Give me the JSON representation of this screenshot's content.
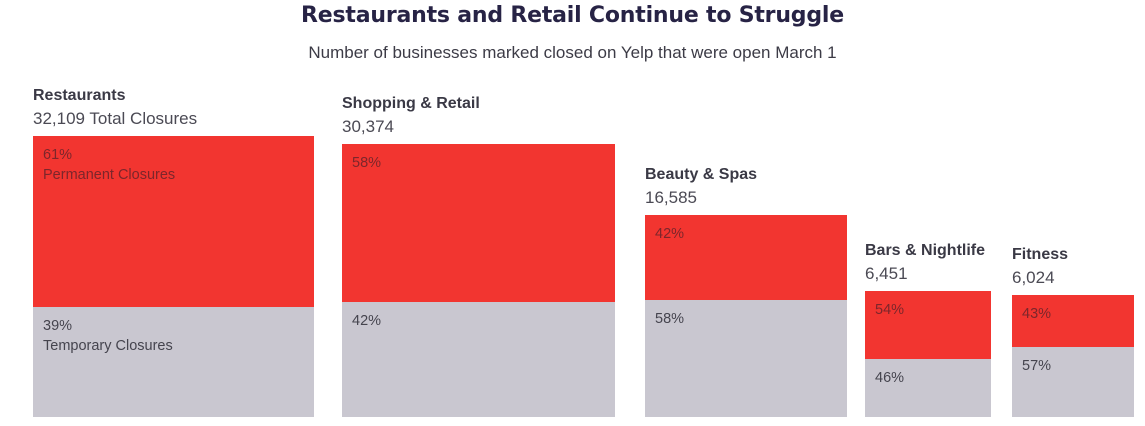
{
  "header": {
    "title": "Restaurants and Retail Continue to Struggle",
    "subtitle": "Number of businesses marked closed on Yelp that were open March 1"
  },
  "colors": {
    "permanent_red": "#f23530",
    "temporary_gray": "#c9c7d0",
    "text_on_red": "#7c262b",
    "text_on_gray": "#45444e",
    "title_text": "#272345",
    "label_text": "#3a3945",
    "value_text": "#4b4a54"
  },
  "chart_data": {
    "type": "bar",
    "subtype": "bottom-aligned proportional-area squares, stacked percent segments",
    "title": "Restaurants and Retail Continue to Struggle",
    "subtitle": "Number of businesses marked closed on Yelp that were open March 1",
    "categories": [
      "Restaurants",
      "Shopping & Retail",
      "Beauty & Spas",
      "Bars & Nightlife",
      "Fitness"
    ],
    "totals": [
      32109,
      30374,
      16585,
      6451,
      6024
    ],
    "total_labels": [
      "32,109 Total Closures",
      "30,374",
      "16,585",
      "6,451",
      "6,024"
    ],
    "series": [
      {
        "name": "Permanent Closures",
        "color": "#f23530",
        "values_pct": [
          61,
          58,
          42,
          54,
          43
        ]
      },
      {
        "name": "Temporary Closures",
        "color": "#c9c7d0",
        "values_pct": [
          39,
          42,
          58,
          46,
          57
        ]
      }
    ],
    "legend_position": "inline-first-bar",
    "grid": false,
    "axes": "none"
  },
  "bars": [
    {
      "name": "Restaurants",
      "total_label": "32,109 Total Closures",
      "red_pct_label": "61%",
      "red_sublabel": "Permanent Closures",
      "gray_pct_label": "39%",
      "gray_sublabel": "Temporary Closures"
    },
    {
      "name": "Shopping & Retail",
      "total_label": "30,374",
      "red_pct_label": "58%",
      "red_sublabel": "",
      "gray_pct_label": "42%",
      "gray_sublabel": ""
    },
    {
      "name": "Beauty & Spas",
      "total_label": "16,585",
      "red_pct_label": "42%",
      "red_sublabel": "",
      "gray_pct_label": "58%",
      "gray_sublabel": ""
    },
    {
      "name": "Bars & Nightlife",
      "total_label": "6,451",
      "red_pct_label": "54%",
      "red_sublabel": "",
      "gray_pct_label": "46%",
      "gray_sublabel": ""
    },
    {
      "name": "Fitness",
      "total_label": "6,024",
      "red_pct_label": "43%",
      "red_sublabel": "",
      "gray_pct_label": "57%",
      "gray_sublabel": ""
    }
  ]
}
